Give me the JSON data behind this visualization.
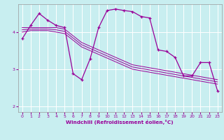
{
  "xlabel": "Windchill (Refroidissement éolien,°C)",
  "bg_color": "#c8eef0",
  "line_color": "#990099",
  "xlim": [
    -0.5,
    23.5
  ],
  "ylim": [
    1.85,
    4.75
  ],
  "yticks": [
    2,
    3,
    4
  ],
  "xticks": [
    0,
    1,
    2,
    3,
    4,
    5,
    6,
    7,
    8,
    9,
    10,
    11,
    12,
    13,
    14,
    15,
    16,
    17,
    18,
    19,
    20,
    21,
    22,
    23
  ],
  "main_x": [
    0,
    1,
    2,
    3,
    4,
    5,
    6,
    7,
    8,
    9,
    10,
    11,
    12,
    13,
    14,
    15,
    16,
    17,
    18,
    19,
    20,
    21,
    22,
    23
  ],
  "main_y": [
    3.82,
    4.18,
    4.5,
    4.32,
    4.18,
    4.12,
    2.88,
    2.72,
    3.28,
    4.12,
    4.58,
    4.62,
    4.58,
    4.55,
    4.42,
    4.38,
    3.52,
    3.48,
    3.32,
    2.82,
    2.82,
    3.18,
    3.18,
    2.42
  ],
  "line2_x": [
    0,
    1,
    2,
    3,
    4,
    5,
    6,
    7,
    8,
    9,
    10,
    11,
    12,
    13,
    14,
    15,
    16,
    17,
    18,
    19,
    20,
    21,
    22,
    23
  ],
  "line2_y": [
    4.12,
    4.12,
    4.12,
    4.12,
    4.12,
    4.08,
    3.9,
    3.72,
    3.62,
    3.52,
    3.42,
    3.32,
    3.22,
    3.12,
    3.08,
    3.04,
    3.0,
    2.96,
    2.92,
    2.88,
    2.84,
    2.8,
    2.76,
    2.72
  ],
  "line3_x": [
    0,
    1,
    2,
    3,
    4,
    5,
    6,
    7,
    8,
    9,
    10,
    11,
    12,
    13,
    14,
    15,
    16,
    17,
    18,
    19,
    20,
    21,
    22,
    23
  ],
  "line3_y": [
    4.06,
    4.08,
    4.08,
    4.08,
    4.06,
    4.02,
    3.84,
    3.66,
    3.56,
    3.46,
    3.36,
    3.26,
    3.16,
    3.06,
    3.02,
    2.98,
    2.94,
    2.9,
    2.86,
    2.82,
    2.78,
    2.74,
    2.7,
    2.66
  ],
  "line4_x": [
    0,
    1,
    2,
    3,
    4,
    5,
    6,
    7,
    8,
    9,
    10,
    11,
    12,
    13,
    14,
    15,
    16,
    17,
    18,
    19,
    20,
    21,
    22,
    23
  ],
  "line4_y": [
    4.0,
    4.04,
    4.04,
    4.04,
    4.0,
    3.96,
    3.78,
    3.6,
    3.5,
    3.4,
    3.3,
    3.2,
    3.1,
    3.0,
    2.96,
    2.92,
    2.88,
    2.84,
    2.8,
    2.76,
    2.72,
    2.68,
    2.64,
    2.6
  ]
}
